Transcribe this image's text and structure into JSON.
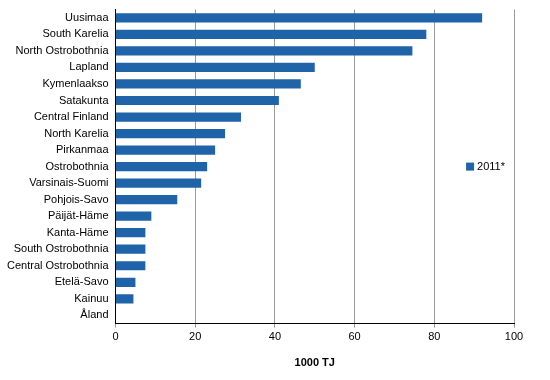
{
  "chart_data": {
    "type": "bar",
    "orientation": "horizontal",
    "categories": [
      "Uusimaa",
      "South Karelia",
      "North Ostrobothnia",
      "Lapland",
      "Kymenlaakso",
      "Satakunta",
      "Central Finland",
      "North Karelia",
      "Pirkanmaa",
      "Ostrobothnia",
      "Varsinais-Suomi",
      "Pohjois-Savo",
      "Päijät-Häme",
      "Kanta-Häme",
      "South Ostrobothnia",
      "Central Ostrobothnia",
      "Etelä-Savo",
      "Kainuu",
      "Åland"
    ],
    "series": [
      {
        "name": "2011*",
        "color": "#1f63a8",
        "values": [
          92,
          78,
          74.5,
          50,
          46.5,
          41,
          31.5,
          27.5,
          25,
          23,
          21.5,
          15.5,
          9,
          7.5,
          7.5,
          7.5,
          5,
          4.5,
          0
        ]
      }
    ],
    "xlabel": "1000 TJ",
    "xlim": [
      0,
      100
    ],
    "xticks": [
      0,
      20,
      40,
      60,
      80,
      100
    ],
    "grid": true,
    "legend": "right"
  }
}
